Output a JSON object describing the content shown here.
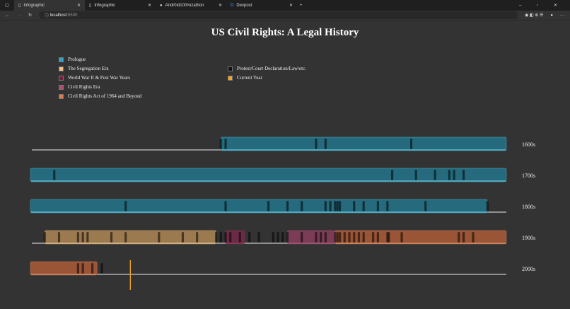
{
  "browser": {
    "tabs": [
      {
        "label": "Infographic",
        "active": true
      },
      {
        "label": "Infographic"
      },
      {
        "label": "Andr0id100/vizathon"
      },
      {
        "label": "Devpost"
      }
    ],
    "url_host": "localhost",
    "url_port": ":5500"
  },
  "title": "US Civil Rights: A Legal History",
  "legend": [
    {
      "label": "Prologue",
      "color": "#2aa7c9"
    },
    {
      "label": "The Segregation Era",
      "color": "#f5c08a"
    },
    {
      "label": "World War II & Post War Years",
      "color": "#7a1a40"
    },
    {
      "label": "Civil Rights Era",
      "color": "#b44a6e"
    },
    {
      "label": "Civil Rights Act of 1964 and Beyond",
      "color": "#e07a4a"
    },
    {
      "label": "Protest/Court Declaration/Law/etc.",
      "color": "#111111"
    },
    {
      "label": "Current Year",
      "color": "#f5a623"
    }
  ],
  "chart_data": {
    "type": "timeline",
    "rows": [
      {
        "label": "1600s",
        "start": 1600
      },
      {
        "label": "1700s",
        "start": 1700
      },
      {
        "label": "1800s",
        "start": 1800
      },
      {
        "label": "1900s",
        "start": 1900
      },
      {
        "label": "2000s",
        "start": 2000
      }
    ],
    "eras": [
      {
        "name": "Prologue",
        "start": 1640,
        "end": 1896,
        "fill": "#256b7d",
        "line": "#5bb8d0"
      },
      {
        "name": "The Segregation Era",
        "start": 1903,
        "end": 1939,
        "fill": "#9c7a4f",
        "line": "#d9b88a"
      },
      {
        "name": "World War II & Post War Years",
        "start": 1941,
        "end": 1945,
        "fill": "#6b2a45",
        "line": "#8a3a5a"
      },
      {
        "name": "Civil Rights Era",
        "start": 1954,
        "end": 1964,
        "fill": "#7a3d55",
        "line": "#a05a75"
      },
      {
        "name": "Civil Rights Act of 1964 and Beyond",
        "start": 1964,
        "end": 2014,
        "fill": "#9a5436",
        "line": "#d08a66"
      }
    ],
    "events": [
      1640,
      1641,
      1660,
      1662,
      1680,
      1705,
      1776,
      1781,
      1785,
      1788,
      1789,
      1791,
      1820,
      1841,
      1850,
      1854,
      1857,
      1862,
      1863,
      1864,
      1864.5,
      1865,
      1868,
      1870,
      1873,
      1875,
      1883,
      1896,
      1903,
      1906,
      1910,
      1911,
      1912,
      1917,
      1920,
      1927,
      1932,
      1935,
      1939,
      1940,
      1941,
      1942,
      1944,
      1946,
      1948,
      1951,
      1952,
      1953,
      1954,
      1957,
      1960,
      1961,
      1962,
      1964,
      1964.5,
      1965,
      1966,
      1967,
      1968,
      1969,
      1970,
      1972,
      1973,
      1975,
      1975.3,
      1978,
      1990,
      1991,
      1993,
      2010,
      2011,
      2013,
      2015
    ],
    "current_year": 2021
  }
}
